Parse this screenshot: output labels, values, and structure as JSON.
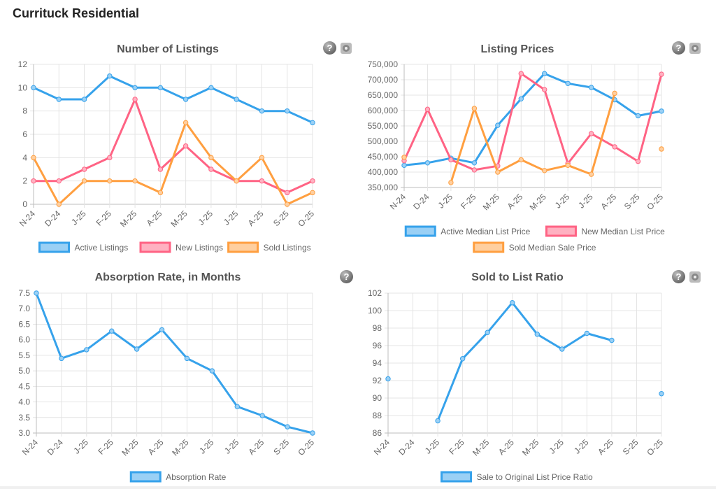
{
  "page": {
    "title": "Currituck Residential",
    "help_glyph": "?"
  },
  "chart_data": [
    {
      "id": "listings",
      "type": "line",
      "title": "Number of Listings",
      "categories": [
        "N-24",
        "D-24",
        "J-25",
        "F-25",
        "M-25",
        "A-25",
        "M-25",
        "J-25",
        "J-25",
        "A-25",
        "S-25",
        "O-25"
      ],
      "ylim": [
        0,
        12
      ],
      "yticks": [
        0,
        2,
        4,
        6,
        8,
        10,
        12
      ],
      "yformat": "plain",
      "legend_layout": "one-row",
      "series": [
        {
          "name": "Active Listings",
          "color": "#36a2eb",
          "fill": "#9ad0f5",
          "values": [
            10,
            9,
            9,
            11,
            10,
            10,
            9,
            10,
            9,
            8,
            8,
            7
          ]
        },
        {
          "name": "New Listings",
          "color": "#ff6384",
          "fill": "#ffb1c1",
          "values": [
            2,
            2,
            3,
            4,
            9,
            3,
            5,
            3,
            2,
            2,
            1,
            2
          ]
        },
        {
          "name": "Sold Listings",
          "color": "#ff9f40",
          "fill": "#ffcf9f",
          "values": [
            4,
            0,
            2,
            2,
            2,
            1,
            7,
            4,
            2,
            4,
            0,
            1
          ]
        }
      ]
    },
    {
      "id": "prices",
      "type": "line",
      "title": "Listing Prices",
      "categories": [
        "N-24",
        "D-24",
        "J-25",
        "F-25",
        "M-25",
        "A-25",
        "M-25",
        "J-25",
        "J-25",
        "A-25",
        "S-25",
        "O-25"
      ],
      "ylim": [
        350000,
        750000
      ],
      "yticks": [
        350000,
        400000,
        450000,
        500000,
        550000,
        600000,
        650000,
        700000,
        750000
      ],
      "yformat": "comma",
      "legend_layout": "two-rows",
      "series": [
        {
          "name": "Active Median List Price",
          "color": "#36a2eb",
          "fill": "#9ad0f5",
          "values": [
            422000,
            430000,
            445000,
            430000,
            552000,
            638000,
            720000,
            688000,
            675000,
            635000,
            583000,
            598000
          ]
        },
        {
          "name": "New Median List Price",
          "color": "#ff6384",
          "fill": "#ffb1c1",
          "values": [
            437000,
            604000,
            440000,
            407000,
            420000,
            720000,
            668000,
            428000,
            525000,
            482000,
            435000,
            718000
          ]
        },
        {
          "name": "Sold Median Sale Price",
          "color": "#ff9f40",
          "fill": "#ffcf9f",
          "values": [
            448000,
            null,
            366000,
            607000,
            400000,
            440000,
            405000,
            422000,
            393000,
            656000,
            null,
            475000
          ]
        }
      ]
    },
    {
      "id": "absorption",
      "type": "line",
      "title": "Absorption Rate, in Months",
      "categories": [
        "N-24",
        "D-24",
        "J-25",
        "F-25",
        "M-25",
        "A-25",
        "M-25",
        "J-25",
        "J-25",
        "A-25",
        "S-25",
        "O-25"
      ],
      "ylim": [
        3.0,
        7.5
      ],
      "yticks": [
        3.0,
        3.5,
        4.0,
        4.5,
        5.0,
        5.5,
        6.0,
        6.5,
        7.0,
        7.5
      ],
      "yformat": "fixed1",
      "legend_layout": "one-row",
      "series": [
        {
          "name": "Absorption Rate",
          "color": "#36a2eb",
          "fill": "#9ad0f5",
          "values": [
            7.5,
            5.4,
            5.68,
            6.28,
            5.7,
            6.32,
            5.4,
            5.0,
            3.85,
            3.56,
            3.2,
            3.0
          ]
        }
      ]
    },
    {
      "id": "ratio",
      "type": "line",
      "title": "Sold to List Ratio",
      "categories": [
        "N-24",
        "D-24",
        "J-25",
        "F-25",
        "M-25",
        "A-25",
        "M-25",
        "J-25",
        "J-25",
        "A-25",
        "S-25",
        "O-25"
      ],
      "ylim": [
        86,
        102
      ],
      "yticks": [
        86,
        88,
        90,
        92,
        94,
        96,
        98,
        100,
        102
      ],
      "yformat": "plain",
      "legend_layout": "one-row",
      "series": [
        {
          "name": "Sale to Original List Price Ratio",
          "color": "#36a2eb",
          "fill": "#9ad0f5",
          "values": [
            92.2,
            null,
            87.4,
            94.5,
            97.5,
            100.9,
            97.3,
            95.6,
            97.4,
            96.6,
            null,
            90.5
          ]
        }
      ]
    }
  ]
}
